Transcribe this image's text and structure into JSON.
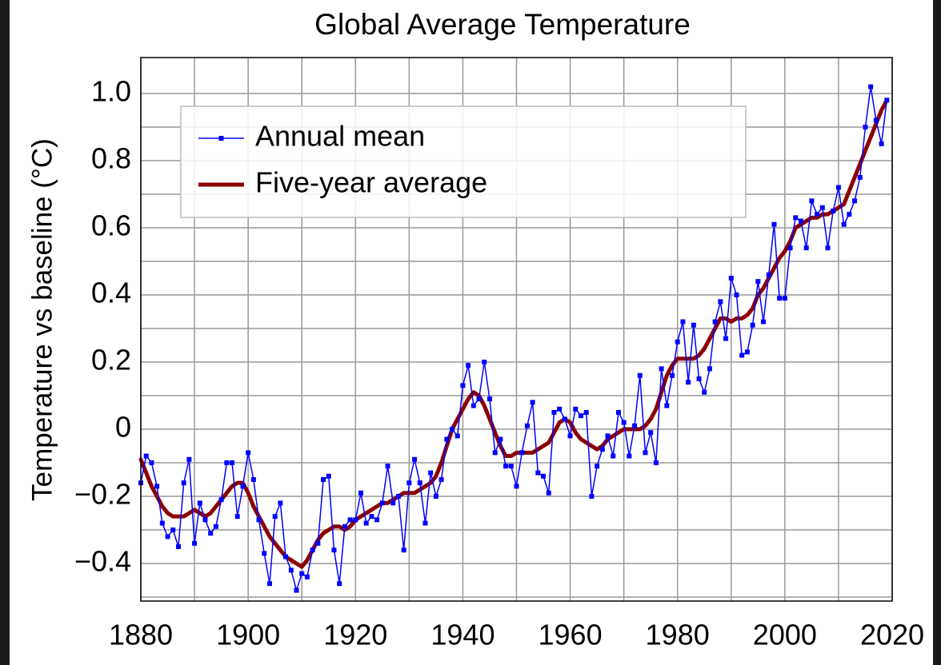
{
  "chart_data": {
    "type": "line",
    "title": "Global Average Temperature",
    "y_label": "Temperature vs baseline (°C)",
    "x": [
      1880,
      1881,
      1882,
      1883,
      1884,
      1885,
      1886,
      1887,
      1888,
      1889,
      1890,
      1891,
      1892,
      1893,
      1894,
      1895,
      1896,
      1897,
      1898,
      1899,
      1900,
      1901,
      1902,
      1903,
      1904,
      1905,
      1906,
      1907,
      1908,
      1909,
      1910,
      1911,
      1912,
      1913,
      1914,
      1915,
      1916,
      1917,
      1918,
      1919,
      1920,
      1921,
      1922,
      1923,
      1924,
      1925,
      1926,
      1927,
      1928,
      1929,
      1930,
      1931,
      1932,
      1933,
      1934,
      1935,
      1936,
      1937,
      1938,
      1939,
      1940,
      1941,
      1942,
      1943,
      1944,
      1945,
      1946,
      1947,
      1948,
      1949,
      1950,
      1951,
      1952,
      1953,
      1954,
      1955,
      1956,
      1957,
      1958,
      1959,
      1960,
      1961,
      1962,
      1963,
      1964,
      1965,
      1966,
      1967,
      1968,
      1969,
      1970,
      1971,
      1972,
      1973,
      1974,
      1975,
      1976,
      1977,
      1978,
      1979,
      1980,
      1981,
      1982,
      1983,
      1984,
      1985,
      1986,
      1987,
      1988,
      1989,
      1990,
      1991,
      1992,
      1993,
      1994,
      1995,
      1996,
      1997,
      1998,
      1999,
      2000,
      2001,
      2002,
      2003,
      2004,
      2005,
      2006,
      2007,
      2008,
      2009,
      2010,
      2011,
      2012,
      2013,
      2014,
      2015,
      2016,
      2017,
      2018,
      2019
    ],
    "series": [
      {
        "name": "Annual mean",
        "color": "#0000ff",
        "marker": true,
        "values": [
          -0.16,
          -0.08,
          -0.1,
          -0.17,
          -0.28,
          -0.32,
          -0.3,
          -0.35,
          -0.16,
          -0.09,
          -0.34,
          -0.22,
          -0.27,
          -0.31,
          -0.29,
          -0.21,
          -0.1,
          -0.1,
          -0.26,
          -0.17,
          -0.07,
          -0.15,
          -0.27,
          -0.37,
          -0.46,
          -0.26,
          -0.22,
          -0.38,
          -0.42,
          -0.48,
          -0.43,
          -0.44,
          -0.36,
          -0.34,
          -0.15,
          -0.14,
          -0.36,
          -0.46,
          -0.29,
          -0.27,
          -0.27,
          -0.19,
          -0.28,
          -0.26,
          -0.27,
          -0.22,
          -0.11,
          -0.22,
          -0.2,
          -0.36,
          -0.16,
          -0.09,
          -0.16,
          -0.28,
          -0.13,
          -0.2,
          -0.15,
          -0.03,
          0.0,
          -0.02,
          0.13,
          0.19,
          0.07,
          0.09,
          0.2,
          0.09,
          -0.07,
          -0.03,
          -0.11,
          -0.11,
          -0.17,
          -0.07,
          0.01,
          0.08,
          -0.13,
          -0.14,
          -0.19,
          0.05,
          0.06,
          0.03,
          -0.02,
          0.06,
          0.04,
          0.05,
          -0.2,
          -0.11,
          -0.06,
          -0.02,
          -0.08,
          0.05,
          0.02,
          -0.08,
          0.01,
          0.16,
          -0.07,
          -0.01,
          -0.1,
          0.18,
          0.07,
          0.16,
          0.26,
          0.32,
          0.14,
          0.31,
          0.15,
          0.11,
          0.18,
          0.32,
          0.38,
          0.27,
          0.45,
          0.4,
          0.22,
          0.23,
          0.31,
          0.44,
          0.32,
          0.46,
          0.61,
          0.39,
          0.39,
          0.54,
          0.63,
          0.62,
          0.54,
          0.68,
          0.64,
          0.66,
          0.54,
          0.65,
          0.72,
          0.61,
          0.64,
          0.68,
          0.75,
          0.9,
          1.02,
          0.92,
          0.85,
          0.98
        ]
      },
      {
        "name": "Five-year average",
        "color": "#8b0000",
        "marker": false,
        "values": [
          -0.09,
          -0.13,
          -0.17,
          -0.2,
          -0.23,
          -0.25,
          -0.26,
          -0.26,
          -0.26,
          -0.25,
          -0.24,
          -0.25,
          -0.26,
          -0.25,
          -0.23,
          -0.21,
          -0.19,
          -0.17,
          -0.16,
          -0.16,
          -0.19,
          -0.23,
          -0.26,
          -0.29,
          -0.32,
          -0.34,
          -0.36,
          -0.38,
          -0.39,
          -0.4,
          -0.41,
          -0.39,
          -0.36,
          -0.33,
          -0.31,
          -0.3,
          -0.29,
          -0.29,
          -0.3,
          -0.29,
          -0.27,
          -0.26,
          -0.25,
          -0.24,
          -0.23,
          -0.22,
          -0.22,
          -0.21,
          -0.2,
          -0.19,
          -0.19,
          -0.19,
          -0.18,
          -0.17,
          -0.16,
          -0.14,
          -0.1,
          -0.05,
          0.0,
          0.03,
          0.06,
          0.09,
          0.11,
          0.1,
          0.07,
          0.03,
          -0.01,
          -0.05,
          -0.08,
          -0.08,
          -0.07,
          -0.07,
          -0.07,
          -0.07,
          -0.06,
          -0.05,
          -0.04,
          -0.01,
          0.02,
          0.03,
          0.02,
          -0.01,
          -0.03,
          -0.04,
          -0.05,
          -0.06,
          -0.05,
          -0.03,
          -0.02,
          -0.01,
          0.0,
          0.0,
          0.0,
          0.0,
          0.01,
          0.03,
          0.06,
          0.11,
          0.16,
          0.19,
          0.21,
          0.21,
          0.21,
          0.21,
          0.22,
          0.24,
          0.27,
          0.3,
          0.33,
          0.33,
          0.32,
          0.33,
          0.33,
          0.34,
          0.36,
          0.4,
          0.42,
          0.45,
          0.48,
          0.51,
          0.53,
          0.56,
          0.6,
          0.61,
          0.62,
          0.63,
          0.63,
          0.64,
          0.64,
          0.65,
          0.66,
          0.67,
          0.71,
          0.75,
          0.79,
          0.83,
          0.87,
          0.91,
          0.95,
          0.98
        ]
      }
    ],
    "xlim": [
      1880,
      2020
    ],
    "xticks": [
      1880,
      1900,
      1920,
      1940,
      1960,
      1980,
      2000,
      2020
    ],
    "xgrid": [
      1890,
      1910,
      1930,
      1950,
      1970,
      1990,
      2010
    ],
    "ylim": [
      -0.512,
      1.107
    ],
    "yticks": [
      {
        "value": -0.4,
        "label": "−0.4"
      },
      {
        "value": -0.2,
        "label": "−0.2"
      },
      0,
      0.2,
      0.4,
      0.6,
      0.8,
      {
        "value": 1,
        "label": "1.0"
      }
    ],
    "ygrid": [
      -0.5,
      -0.3,
      -0.1,
      0.1,
      0.3,
      0.5,
      0.7,
      0.9
    ],
    "grid": true,
    "legend": "upper left"
  }
}
